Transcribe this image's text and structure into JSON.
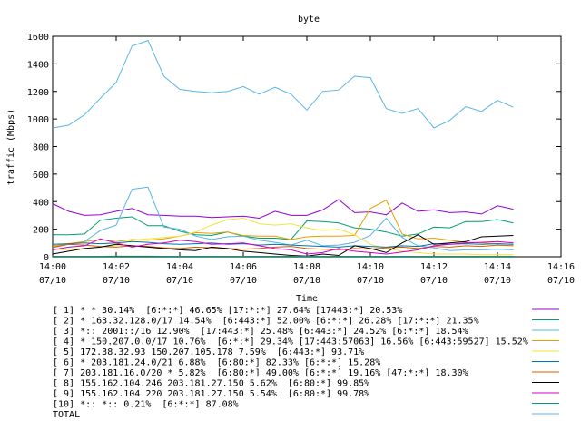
{
  "chart_data": {
    "type": "line",
    "title": "byte",
    "xlabel": "Time",
    "ylabel": "traffic (Mbps)",
    "ylim": [
      0,
      1600
    ],
    "yticks": [
      0,
      200,
      400,
      600,
      800,
      1000,
      1200,
      1400,
      1600
    ],
    "xlim": [
      "14:00",
      "14:16"
    ],
    "xticks": [
      {
        "time": "14:00",
        "date": "07/10"
      },
      {
        "time": "14:02",
        "date": "07/10"
      },
      {
        "time": "14:04",
        "date": "07/10"
      },
      {
        "time": "14:06",
        "date": "07/10"
      },
      {
        "time": "14:08",
        "date": "07/10"
      },
      {
        "time": "14:10",
        "date": "07/10"
      },
      {
        "time": "14:12",
        "date": "07/10"
      },
      {
        "time": "14:14",
        "date": "07/10"
      },
      {
        "time": "14:16",
        "date": "07/10"
      }
    ],
    "grid": false,
    "legend_position": "bottom",
    "series": [
      {
        "name": "[ 1] * * 30.14%  [6:*:*] 46.65% [17:*:*] 27.64% [17443:*] 20.53%",
        "color": "#9400d3",
        "x": [
          "14:00",
          "14:00:30",
          "14:01",
          "14:01:30",
          "14:02",
          "14:02:30",
          "14:03",
          "14:03:30",
          "14:04",
          "14:04:30",
          "14:05",
          "14:05:30",
          "14:06",
          "14:06:30",
          "14:07",
          "14:07:30",
          "14:08",
          "14:08:30",
          "14:09",
          "14:09:30",
          "14:10",
          "14:10:30",
          "14:11",
          "14:11:30",
          "14:12",
          "14:12:30",
          "14:13",
          "14:13:30",
          "14:14",
          "14:14:30"
        ],
        "values": [
          385,
          330,
          300,
          305,
          330,
          350,
          305,
          300,
          295,
          295,
          285,
          290,
          295,
          280,
          330,
          300,
          300,
          340,
          415,
          320,
          325,
          305,
          390,
          330,
          340,
          320,
          325,
          310,
          370,
          345
        ]
      },
      {
        "name": "[ 2] * 163.32.128.0/17 14.54%  [6:443:*] 52.00% [6:*:*] 26.28% [17:*:*] 21.35%",
        "color": "#009e73",
        "x": [
          "14:00",
          "14:00:30",
          "14:01",
          "14:01:30",
          "14:02",
          "14:02:30",
          "14:03",
          "14:03:30",
          "14:04",
          "14:04:30",
          "14:05",
          "14:05:30",
          "14:06",
          "14:06:30",
          "14:07",
          "14:07:30",
          "14:08",
          "14:08:30",
          "14:09",
          "14:09:30",
          "14:10",
          "14:10:30",
          "14:11",
          "14:11:30",
          "14:12",
          "14:12:30",
          "14:13",
          "14:13:30",
          "14:14",
          "14:14:30"
        ],
        "values": [
          160,
          160,
          165,
          265,
          280,
          290,
          225,
          225,
          185,
          160,
          155,
          180,
          150,
          135,
          135,
          125,
          260,
          255,
          245,
          210,
          200,
          180,
          150,
          165,
          215,
          210,
          255,
          255,
          270,
          245
        ]
      },
      {
        "name": "[ 3] *:: 2001::/16 12.90%  [17:443:*] 25.48% [6:443:*] 24.52% [6:*:*] 18.54%",
        "color": "#56b4e9",
        "x": [
          "14:00",
          "14:00:30",
          "14:01",
          "14:01:30",
          "14:02",
          "14:02:30",
          "14:03",
          "14:03:30",
          "14:04",
          "14:04:30",
          "14:05",
          "14:05:30",
          "14:06",
          "14:06:30",
          "14:07",
          "14:07:30",
          "14:08",
          "14:08:30",
          "14:09",
          "14:09:30",
          "14:10",
          "14:10:30",
          "14:11",
          "14:11:30",
          "14:12",
          "14:12:30",
          "14:13",
          "14:13:30",
          "14:14",
          "14:14:30"
        ],
        "values": [
          65,
          90,
          110,
          190,
          230,
          490,
          505,
          215,
          200,
          150,
          125,
          145,
          150,
          120,
          105,
          85,
          120,
          80,
          85,
          105,
          155,
          280,
          140,
          80,
          65,
          45,
          50,
          50,
          55,
          50
        ]
      },
      {
        "name": "[ 4] * 150.207.0.0/17 10.76%  [6:*:*] 29.34% [17:443:57063] 16.56% [6:443:59527] 15.52%",
        "color": "#e69f00",
        "x": [
          "14:00",
          "14:00:30",
          "14:01",
          "14:01:30",
          "14:02",
          "14:02:30",
          "14:03",
          "14:03:30",
          "14:04",
          "14:04:30",
          "14:05",
          "14:05:30",
          "14:06",
          "14:06:30",
          "14:07",
          "14:07:30",
          "14:08",
          "14:08:30",
          "14:09",
          "14:09:30",
          "14:10",
          "14:10:30",
          "14:11",
          "14:11:30",
          "14:12",
          "14:12:30",
          "14:13",
          "14:13:30",
          "14:14",
          "14:14:30"
        ],
        "values": [
          80,
          95,
          110,
          125,
          110,
          125,
          120,
          130,
          150,
          175,
          170,
          180,
          155,
          150,
          150,
          125,
          145,
          150,
          150,
          155,
          350,
          410,
          165,
          130,
          135,
          120,
          105,
          100,
          95,
          90
        ]
      },
      {
        "name": "[ 5] 172.38.32.93 150.207.105.178 7.59%  [6:443:*] 93.71%",
        "color": "#f0e442",
        "x": [
          "14:00",
          "14:00:30",
          "14:01",
          "14:01:30",
          "14:02",
          "14:02:30",
          "14:03",
          "14:03:30",
          "14:04",
          "14:04:30",
          "14:05",
          "14:05:30",
          "14:06",
          "14:06:30",
          "14:07",
          "14:07:30",
          "14:08",
          "14:08:30",
          "14:09",
          "14:09:30",
          "14:10",
          "14:10:30",
          "14:11",
          "14:11:30",
          "14:12",
          "14:12:30",
          "14:13",
          "14:13:30",
          "14:14",
          "14:14:30"
        ],
        "values": [
          50,
          55,
          60,
          70,
          80,
          120,
          130,
          140,
          150,
          180,
          230,
          270,
          280,
          240,
          230,
          240,
          210,
          190,
          200,
          160,
          90,
          60,
          40,
          30,
          20,
          20,
          20,
          15,
          15,
          15
        ]
      },
      {
        "name": "[ 6] * 203.181.24.0/21 6.88%  [6:80:*] 82.33% [6:*:*] 15.28%",
        "color": "#0072b2",
        "x": [
          "14:00",
          "14:00:30",
          "14:01",
          "14:01:30",
          "14:02",
          "14:02:30",
          "14:03",
          "14:03:30",
          "14:04",
          "14:04:30",
          "14:05",
          "14:05:30",
          "14:06",
          "14:06:30",
          "14:07",
          "14:07:30",
          "14:08",
          "14:08:30",
          "14:09",
          "14:09:30",
          "14:10",
          "14:10:30",
          "14:11",
          "14:11:30",
          "14:12",
          "14:12:30",
          "14:13",
          "14:13:30",
          "14:14",
          "14:14:30"
        ],
        "values": [
          90,
          95,
          100,
          95,
          100,
          110,
          105,
          95,
          90,
          95,
          100,
          90,
          95,
          85,
          90,
          85,
          80,
          75,
          70,
          80,
          75,
          70,
          80,
          75,
          95,
          90,
          95,
          90,
          95,
          90
        ]
      },
      {
        "name": "[ 7] 203.181.16.0/20 * 5.82%  [6:80:*] 49.00% [6:*:*] 19.16% [47:*:*] 18.30%",
        "color": "#d55e00",
        "x": [
          "14:00",
          "14:00:30",
          "14:01",
          "14:01:30",
          "14:02",
          "14:02:30",
          "14:03",
          "14:03:30",
          "14:04",
          "14:04:30",
          "14:05",
          "14:05:30",
          "14:06",
          "14:06:30",
          "14:07",
          "14:07:30",
          "14:08",
          "14:08:30",
          "14:09",
          "14:09:30",
          "14:10",
          "14:10:30",
          "14:11",
          "14:11:30",
          "14:12",
          "14:12:30",
          "14:13",
          "14:13:30",
          "14:14",
          "14:14:30"
        ],
        "values": [
          70,
          90,
          85,
          75,
          70,
          80,
          75,
          65,
          60,
          70,
          65,
          60,
          55,
          60,
          70,
          75,
          60,
          55,
          50,
          60,
          55,
          65,
          70,
          60,
          75,
          70,
          80,
          75,
          85,
          80
        ]
      },
      {
        "name": "[ 8] 155.162.104.246 203.181.27.150 5.62%  [6:80:*] 99.85%",
        "color": "#000000",
        "x": [
          "14:00",
          "14:00:30",
          "14:01",
          "14:01:30",
          "14:02",
          "14:02:30",
          "14:03",
          "14:03:30",
          "14:04",
          "14:04:30",
          "14:05",
          "14:05:30",
          "14:06",
          "14:06:30",
          "14:07",
          "14:07:30",
          "14:08",
          "14:08:30",
          "14:09",
          "14:09:30",
          "14:10",
          "14:10:30",
          "14:11",
          "14:11:30",
          "14:12",
          "14:12:30",
          "14:13",
          "14:13:30",
          "14:14",
          "14:14:30"
        ],
        "values": [
          20,
          40,
          60,
          70,
          90,
          80,
          70,
          60,
          50,
          45,
          70,
          60,
          40,
          30,
          20,
          10,
          5,
          20,
          10,
          80,
          60,
          30,
          100,
          160,
          90,
          100,
          110,
          145,
          150,
          155
        ]
      },
      {
        "name": "[ 9] 155.162.104.220 203.181.27.150 5.54%  [6:80:*] 99.78%",
        "color": "#cc00cc",
        "x": [
          "14:00",
          "14:00:30",
          "14:01",
          "14:01:30",
          "14:02",
          "14:02:30",
          "14:03",
          "14:03:30",
          "14:04",
          "14:04:30",
          "14:05",
          "14:05:30",
          "14:06",
          "14:06:30",
          "14:07",
          "14:07:30",
          "14:08",
          "14:08:30",
          "14:09",
          "14:09:30",
          "14:10",
          "14:10:30",
          "14:11",
          "14:11:30",
          "14:12",
          "14:12:30",
          "14:13",
          "14:13:30",
          "14:14",
          "14:14:30"
        ],
        "values": [
          50,
          70,
          80,
          130,
          100,
          70,
          90,
          100,
          120,
          110,
          90,
          95,
          100,
          80,
          60,
          50,
          20,
          30,
          60,
          40,
          30,
          20,
          35,
          50,
          80,
          90,
          100,
          105,
          110,
          100
        ]
      },
      {
        "name": "[10] *:: *:: 0.21%  [6:*:*] 87.08%",
        "color": "#009e73",
        "x": [
          "14:00",
          "14:00:30",
          "14:01",
          "14:01:30",
          "14:02",
          "14:02:30",
          "14:03",
          "14:03:30",
          "14:04",
          "14:04:30",
          "14:05",
          "14:05:30",
          "14:06",
          "14:06:30",
          "14:07",
          "14:07:30",
          "14:08",
          "14:08:30",
          "14:09",
          "14:09:30",
          "14:10",
          "14:10:30",
          "14:11",
          "14:11:30",
          "14:12",
          "14:12:30",
          "14:13",
          "14:13:30",
          "14:14",
          "14:14:30"
        ],
        "values": [
          3,
          3,
          3,
          3,
          4,
          4,
          4,
          3,
          3,
          3,
          3,
          3,
          3,
          3,
          3,
          3,
          3,
          3,
          3,
          3,
          3,
          3,
          3,
          3,
          3,
          3,
          3,
          3,
          3,
          3
        ]
      },
      {
        "name": "TOTAL",
        "color": "#56b4e9",
        "x": [
          "14:00",
          "14:00:30",
          "14:01",
          "14:01:30",
          "14:02",
          "14:02:30",
          "14:03",
          "14:03:30",
          "14:04",
          "14:04:30",
          "14:05",
          "14:05:30",
          "14:06",
          "14:06:30",
          "14:07",
          "14:07:30",
          "14:08",
          "14:08:30",
          "14:09",
          "14:09:30",
          "14:10",
          "14:10:30",
          "14:11",
          "14:11:30",
          "14:12",
          "14:12:30",
          "14:13",
          "14:13:30",
          "14:14",
          "14:14:30"
        ],
        "values": [
          935,
          955,
          1030,
          1150,
          1265,
          1530,
          1570,
          1310,
          1215,
          1200,
          1190,
          1200,
          1235,
          1180,
          1230,
          1180,
          1065,
          1200,
          1210,
          1310,
          1300,
          1075,
          1040,
          1075,
          935,
          990,
          1090,
          1055,
          1135,
          1085
        ]
      }
    ]
  }
}
